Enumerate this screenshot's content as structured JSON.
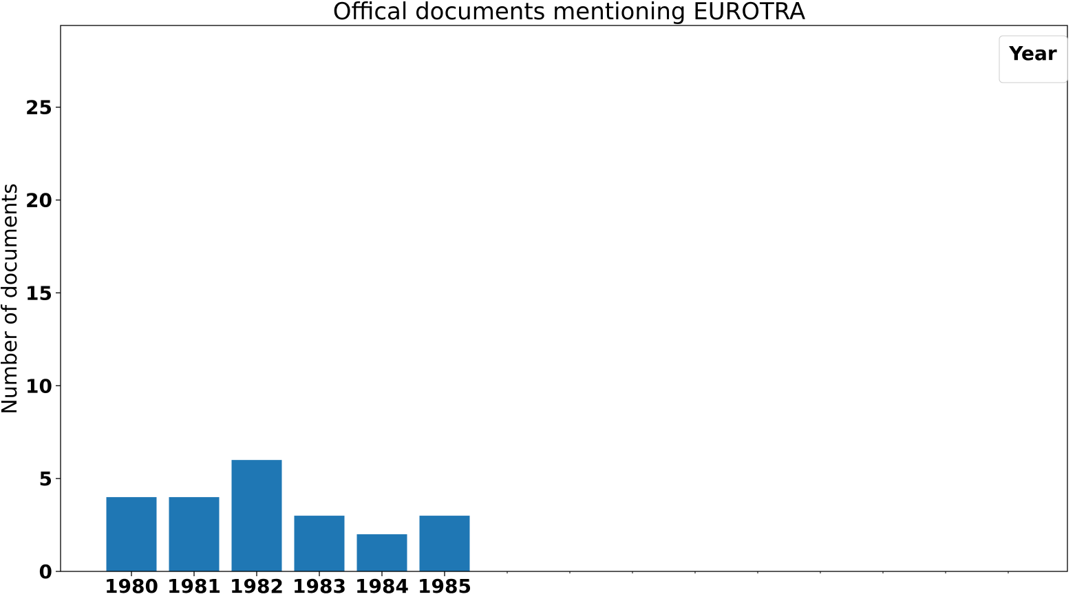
{
  "chart_data": {
    "type": "bar",
    "title": "Offical documents mentioning EUROTRA",
    "xlabel": "",
    "ylabel": "Number of documents",
    "categories": [
      "1980",
      "1981",
      "1982",
      "1983",
      "1984",
      "1985"
    ],
    "values": [
      4,
      4,
      6,
      3,
      2,
      3
    ],
    "ylim": [
      0,
      29.4
    ],
    "yticks": [
      0,
      5,
      10,
      15,
      20,
      25
    ],
    "empty_category_slots": 9,
    "grid": false,
    "legend": {
      "title": "Year",
      "placement": "top-right",
      "entries": []
    },
    "bar_color": "#1f77b4"
  }
}
